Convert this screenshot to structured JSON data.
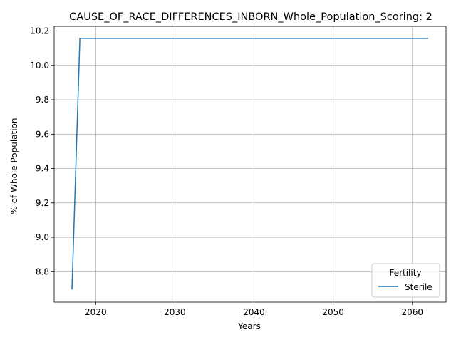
{
  "chart_data": {
    "type": "line",
    "title": "CAUSE_OF_RACE_DIFFERENCES_INBORN_Whole_Population_Scoring: 2",
    "xlabel": "Years",
    "ylabel": "% of Whole Population",
    "xlim": [
      2014.75,
      2064.25
    ],
    "ylim": [
      8.623,
      10.227
    ],
    "x_ticks": [
      2020,
      2030,
      2040,
      2050,
      2060
    ],
    "x_tick_labels": [
      "2020",
      "2030",
      "2040",
      "2050",
      "2060"
    ],
    "y_ticks": [
      8.8,
      9.0,
      9.2,
      9.4,
      9.6,
      9.8,
      10.0,
      10.2
    ],
    "y_tick_labels": [
      "8.8",
      "9.0",
      "9.2",
      "9.4",
      "9.6",
      "9.8",
      "10.0",
      "10.2"
    ],
    "grid": true,
    "legend": {
      "title": "Fertility",
      "placement": "lower-right"
    },
    "series": [
      {
        "name": "Sterile",
        "color": "#1f77b4",
        "x": [
          2017,
          2018,
          2062
        ],
        "y": [
          8.696,
          10.157,
          10.157
        ]
      }
    ]
  }
}
